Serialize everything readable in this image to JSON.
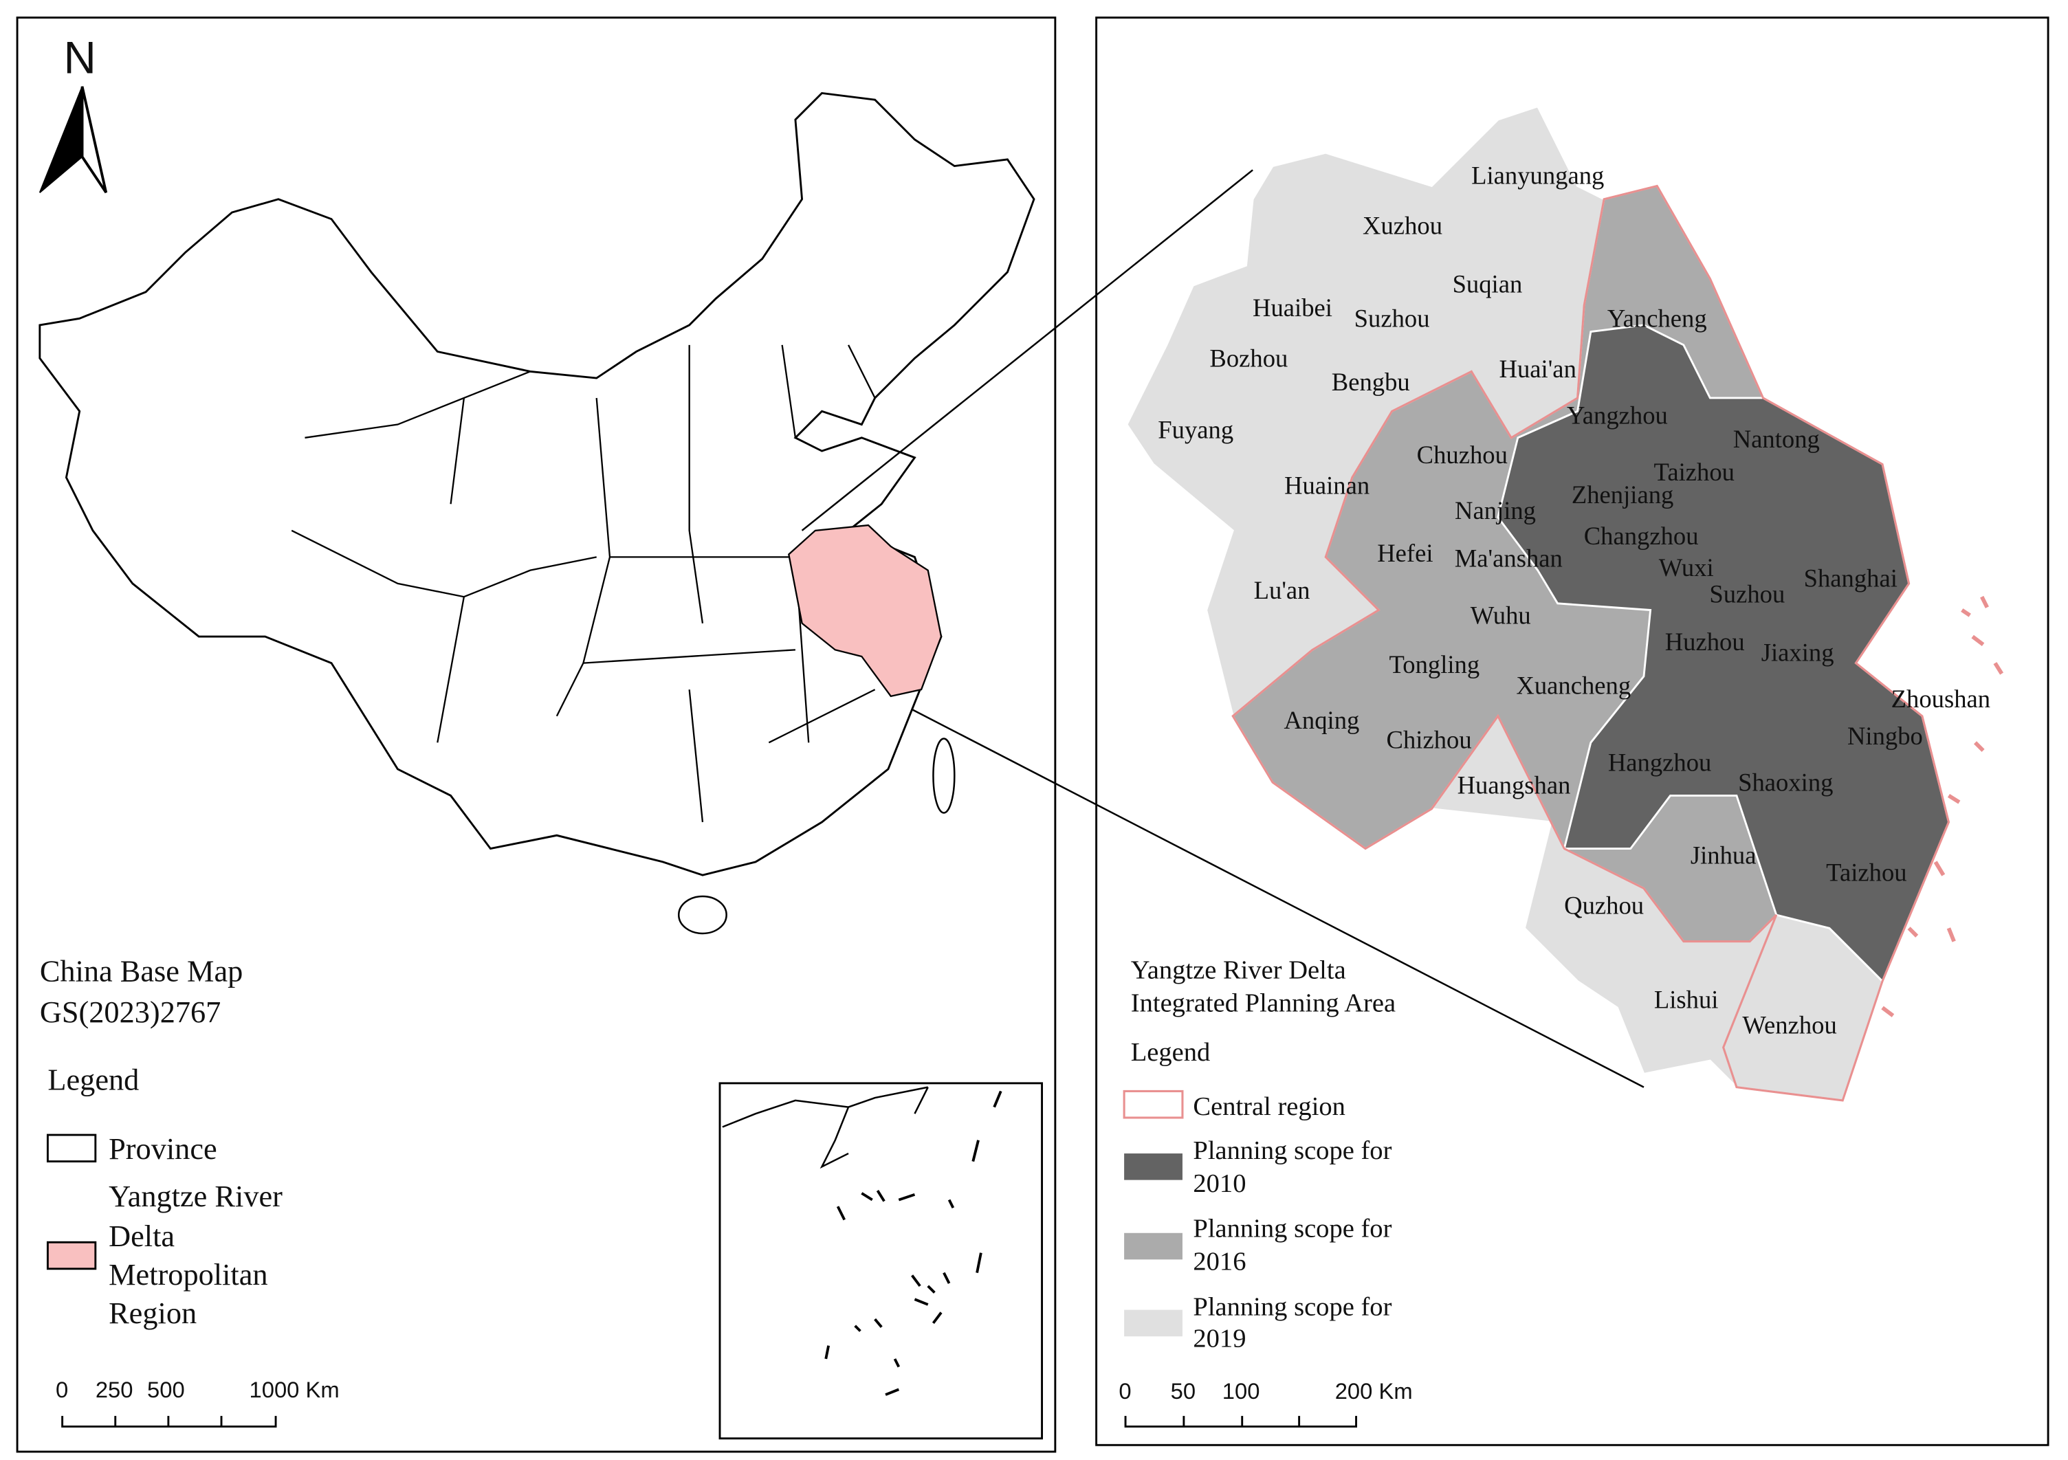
{
  "left_panel": {
    "north_label": "N",
    "caption": [
      "China Base Map",
      "GS(2023)2767"
    ],
    "legend": {
      "title": "Legend",
      "province": "Province",
      "region": [
        "Yangtze River",
        "Delta",
        "Metropolitan",
        "Region"
      ]
    },
    "scale_labels": [
      "0",
      "250",
      "500",
      "1000 Km"
    ]
  },
  "right_panel": {
    "title": [
      "Yangtze River Delta",
      "Integrated Planning Area"
    ],
    "legend": {
      "title": "Legend",
      "central": "Central region",
      "scope_2010": [
        "Planning scope for",
        "2010"
      ],
      "scope_2016": [
        "Planning scope for",
        "2016"
      ],
      "scope_2019": [
        "Planning scope for",
        "2019"
      ]
    },
    "scale_labels": [
      "0",
      "50",
      "100",
      "200 Km"
    ],
    "cities": [
      "Lianyungang",
      "Xuzhou",
      "Suqian",
      "Huaibei",
      "Suzhou",
      "Yancheng",
      "Bozhou",
      "Huai'an",
      "Bengbu",
      "Yangzhou",
      "Fuyang",
      "Nantong",
      "Chuzhou",
      "Taizhou",
      "Huainan",
      "Zhenjiang",
      "Nanjing",
      "Changzhou",
      "Hefei",
      "Ma'anshan",
      "Wuxi",
      "Shanghai",
      "Lu'an",
      "Suzhou",
      "Wuhu",
      "Huzhou",
      "Jiaxing",
      "Tongling",
      "Xuancheng",
      "Zhoushan",
      "Anqing",
      "Chizhou",
      "Ningbo",
      "Hangzhou",
      "Shaoxing",
      "Huangshan",
      "Jinhua",
      "Taizhou",
      "Quzhou",
      "Lishui",
      "Wenzhou"
    ]
  }
}
